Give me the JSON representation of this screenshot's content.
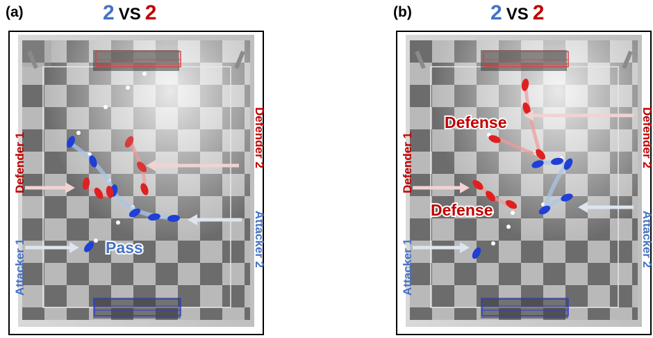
{
  "panels": [
    {
      "letter": "(a)",
      "title": {
        "left_num": "2",
        "vs": "VS",
        "right_num": "2"
      },
      "labels": {
        "defender1": "Defender 1",
        "defender2": "Defender 2",
        "attacker1": "Attacker 1",
        "attacker2": "Attacker 2",
        "annotation": "Pass"
      }
    },
    {
      "letter": "(b)",
      "title": {
        "left_num": "2",
        "vs": "VS",
        "right_num": "2"
      },
      "labels": {
        "defender1": "Defender 1",
        "defender2": "Defender 2",
        "attacker1": "Attacker 1",
        "attacker2": "Attacker 2",
        "annotation_top": "Defense",
        "annotation_bottom": "Defense"
      }
    }
  ],
  "colors": {
    "blue_team": "#4472c4",
    "red_team": "#c00000",
    "robot_blue": "#1f3fd6",
    "robot_red": "#e02020"
  }
}
